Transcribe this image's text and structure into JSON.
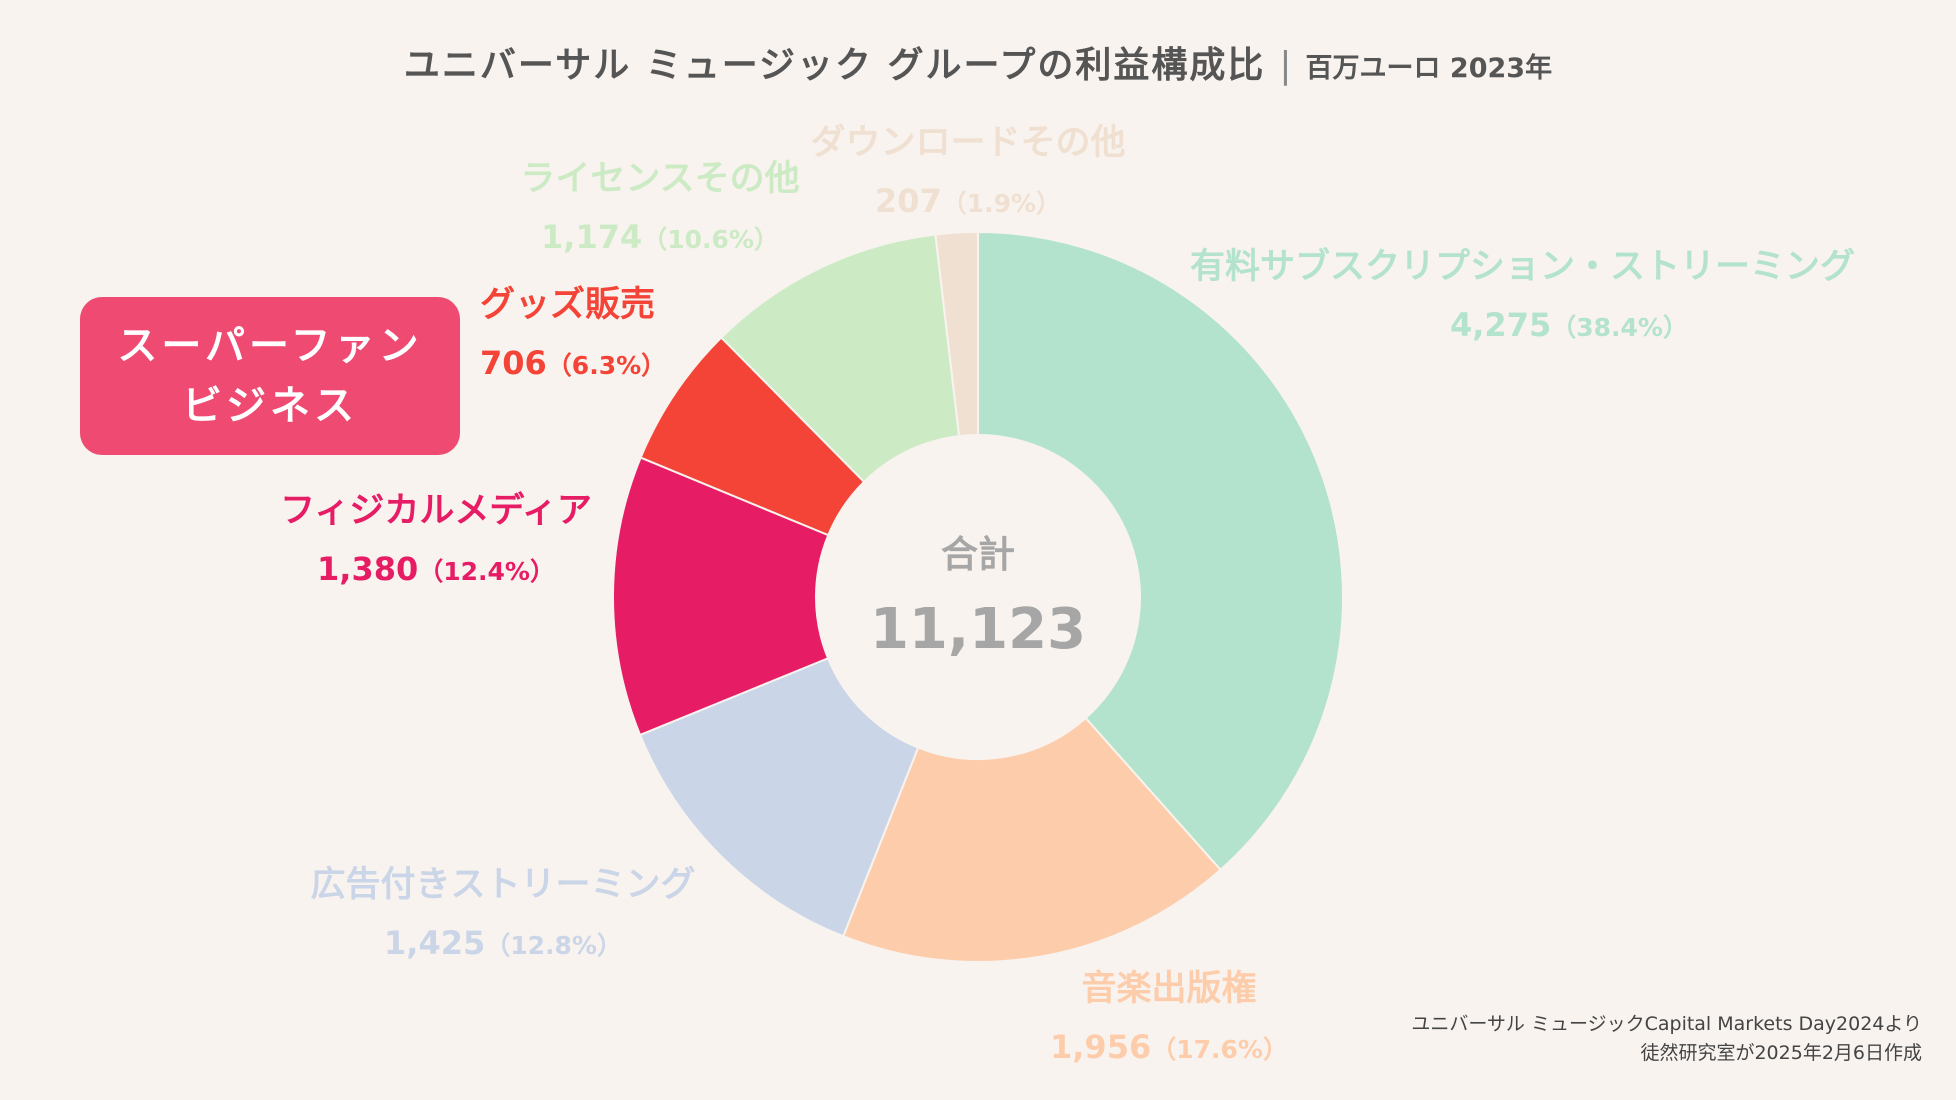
{
  "title": {
    "main": "ユニバーサル ミュージック グループの利益構成比",
    "separator": "|",
    "unit": "百万ユーロ 2023年"
  },
  "badge": {
    "line1": "スーパーファン",
    "line2": "ビジネス"
  },
  "center": {
    "label": "合計",
    "total": "11,123"
  },
  "source": {
    "line1": "ユニバーサル ミュージックCapital Markets Day2024より",
    "line2": "徒然研究室が2025年2月6日作成"
  },
  "chart_data": {
    "type": "pie",
    "donut": true,
    "total": 11123,
    "slices": [
      {
        "name": "有料サブスクリプション・ストリーミング",
        "value": 4275,
        "value_label": "4,275",
        "percent_label": "（38.4%）",
        "color": "#b3e3cd"
      },
      {
        "name": "音楽出版権",
        "value": 1956,
        "value_label": "1,956",
        "percent_label": "（17.6%）",
        "color": "#fdcdab"
      },
      {
        "name": "広告付きストリーミング",
        "value": 1425,
        "value_label": "1,425",
        "percent_label": "（12.8%）",
        "color": "#cbd5e8"
      },
      {
        "name": "フィジカルメディア",
        "value": 1380,
        "value_label": "1,380",
        "percent_label": "（12.4%）",
        "color": "#e61c64"
      },
      {
        "name": "グッズ販売",
        "value": 706,
        "value_label": "706",
        "percent_label": "（6.3%）",
        "color": "#f44337"
      },
      {
        "name": "ライセンスその他",
        "value": 1174,
        "value_label": "1,174",
        "percent_label": "（10.6%）",
        "color": "#ccebc5"
      },
      {
        "name": "ダウンロードその他",
        "value": 207,
        "value_label": "207",
        "percent_label": "（1.9%）",
        "color": "#f0e0d1"
      }
    ]
  }
}
